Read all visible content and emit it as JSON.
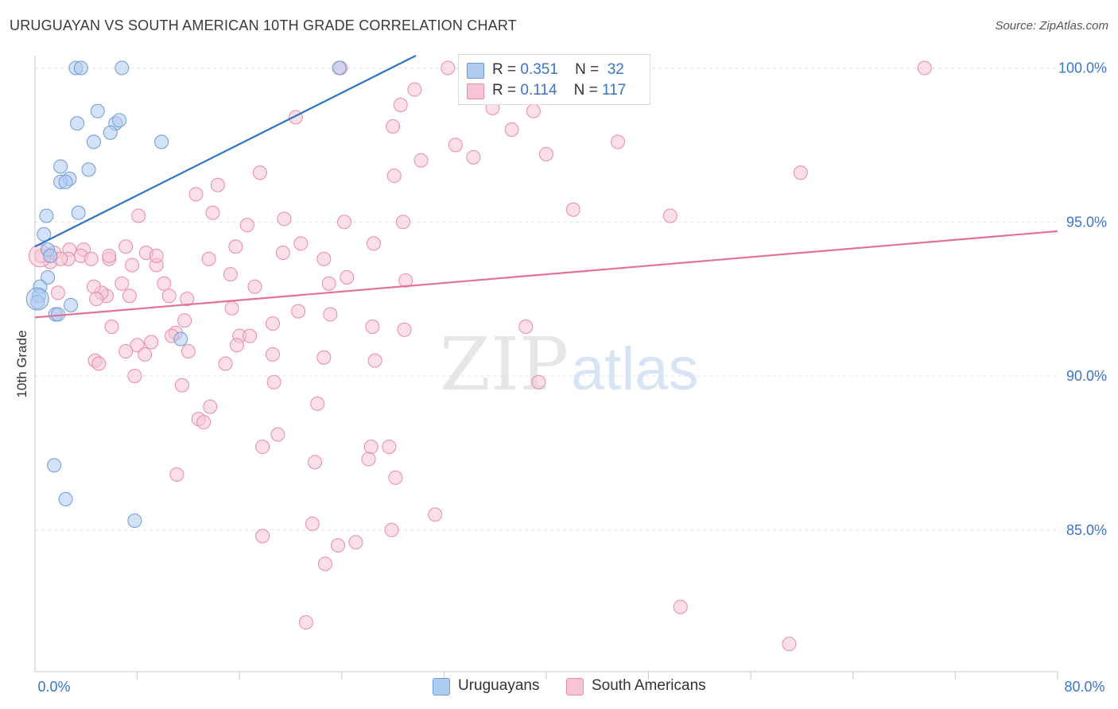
{
  "title": "URUGUAYAN VS SOUTH AMERICAN 10TH GRADE CORRELATION CHART",
  "source": "Source: ZipAtlas.com",
  "watermark": {
    "zip": "ZIP",
    "atlas": "atlas"
  },
  "legend": {
    "r_label": "R =",
    "n_label": "N =",
    "rows": [
      {
        "r": "0.351",
        "n": "32",
        "color": "#aecbf0",
        "border": "#6d9bd6"
      },
      {
        "r": "0.114",
        "n": "117",
        "color": "#f7c4d4",
        "border": "#e98aab"
      }
    ]
  },
  "bottom_legend": [
    {
      "label": "Uruguayans",
      "color": "#aecbf0",
      "border": "#6d9bd6"
    },
    {
      "label": "South Americans",
      "color": "#f7c4d4",
      "border": "#e98aab"
    }
  ],
  "chart_data": {
    "type": "scatter",
    "title": "URUGUAYAN VS SOUTH AMERICAN 10TH GRADE CORRELATION CHART",
    "xlabel": "",
    "ylabel": "10th Grade",
    "xlim": [
      0,
      80
    ],
    "ylim": [
      80.4,
      100.4
    ],
    "x_tick_labels": [
      "0.0%",
      "80.0%"
    ],
    "y_ticks": [
      85,
      90,
      95,
      100
    ],
    "y_tick_labels": [
      "85.0%",
      "90.0%",
      "95.0%",
      "100.0%"
    ],
    "grid": true,
    "legend_position": "top-center",
    "series": [
      {
        "name": "Uruguayans",
        "color": "#aecbf0",
        "stroke": "#6d9bd6",
        "trend": {
          "x": [
            0,
            29.8
          ],
          "y": [
            94.2,
            100.4
          ],
          "color": "#2f72c9"
        },
        "points": [
          [
            3.2,
            100
          ],
          [
            3.6,
            100
          ],
          [
            6.8,
            100
          ],
          [
            23.8,
            100
          ],
          [
            4.9,
            98.6
          ],
          [
            3.3,
            98.2
          ],
          [
            6.3,
            98.2
          ],
          [
            6.6,
            98.3
          ],
          [
            5.9,
            97.9
          ],
          [
            4.6,
            97.6
          ],
          [
            9.9,
            97.6
          ],
          [
            2.0,
            96.8
          ],
          [
            4.2,
            96.7
          ],
          [
            2.7,
            96.4
          ],
          [
            2.0,
            96.3
          ],
          [
            2.4,
            96.3
          ],
          [
            3.4,
            95.3
          ],
          [
            0.9,
            95.2
          ],
          [
            0.7,
            94.6
          ],
          [
            1.0,
            94.1
          ],
          [
            1.2,
            93.9
          ],
          [
            1.0,
            93.2
          ],
          [
            0.4,
            92.9
          ],
          [
            0.3,
            92.6
          ],
          [
            0.2,
            92.4
          ],
          [
            2.8,
            92.3
          ],
          [
            1.6,
            92.0
          ],
          [
            1.8,
            92.0
          ],
          [
            11.4,
            91.2
          ],
          [
            1.5,
            87.1
          ],
          [
            2.4,
            86.0
          ],
          [
            7.8,
            85.3
          ]
        ]
      },
      {
        "name": "South Americans",
        "color": "#f7c4d4",
        "stroke": "#e98aab",
        "trend": {
          "x": [
            0,
            80
          ],
          "y": [
            91.9,
            94.7
          ],
          "color": "#e2729a"
        },
        "points": [
          [
            23.9,
            100
          ],
          [
            32.3,
            100
          ],
          [
            69.6,
            100
          ],
          [
            34.6,
            99.7
          ],
          [
            29.7,
            99.3
          ],
          [
            35.8,
            98.7
          ],
          [
            28.6,
            98.8
          ],
          [
            39.0,
            98.6
          ],
          [
            20.4,
            98.4
          ],
          [
            28.0,
            98.1
          ],
          [
            37.3,
            98.0
          ],
          [
            32.9,
            97.5
          ],
          [
            45.6,
            97.6
          ],
          [
            34.3,
            97.1
          ],
          [
            30.2,
            97.0
          ],
          [
            40.0,
            97.2
          ],
          [
            28.1,
            96.5
          ],
          [
            59.9,
            96.6
          ],
          [
            17.6,
            96.6
          ],
          [
            14.3,
            96.2
          ],
          [
            12.6,
            95.9
          ],
          [
            42.1,
            95.4
          ],
          [
            49.7,
            95.2
          ],
          [
            13.9,
            95.3
          ],
          [
            8.1,
            95.2
          ],
          [
            19.5,
            95.1
          ],
          [
            16.6,
            94.9
          ],
          [
            24.2,
            95.0
          ],
          [
            28.8,
            95.0
          ],
          [
            26.5,
            94.3
          ],
          [
            20.8,
            94.3
          ],
          [
            15.7,
            94.2
          ],
          [
            19.4,
            94.0
          ],
          [
            8.7,
            94.0
          ],
          [
            7.1,
            94.2
          ],
          [
            7.6,
            93.6
          ],
          [
            9.5,
            93.6
          ],
          [
            9.5,
            93.9
          ],
          [
            3.8,
            94.1
          ],
          [
            2.7,
            94.1
          ],
          [
            3.6,
            93.9
          ],
          [
            5.8,
            93.8
          ],
          [
            4.4,
            93.8
          ],
          [
            5.8,
            93.9
          ],
          [
            2.6,
            93.8
          ],
          [
            1.2,
            93.7
          ],
          [
            0.5,
            93.9
          ],
          [
            1.5,
            94.0
          ],
          [
            2.0,
            93.8
          ],
          [
            22.6,
            93.8
          ],
          [
            13.6,
            93.8
          ],
          [
            15.3,
            93.3
          ],
          [
            24.4,
            93.2
          ],
          [
            10.1,
            93.0
          ],
          [
            23.0,
            93.0
          ],
          [
            17.2,
            92.9
          ],
          [
            29.0,
            93.1
          ],
          [
            6.8,
            93.0
          ],
          [
            7.4,
            92.6
          ],
          [
            5.6,
            92.6
          ],
          [
            5.2,
            92.7
          ],
          [
            1.8,
            92.7
          ],
          [
            4.6,
            92.9
          ],
          [
            4.8,
            92.5
          ],
          [
            10.5,
            92.6
          ],
          [
            11.9,
            92.5
          ],
          [
            15.4,
            92.2
          ],
          [
            20.6,
            92.1
          ],
          [
            23.1,
            92.0
          ],
          [
            11.7,
            91.8
          ],
          [
            18.6,
            91.7
          ],
          [
            26.4,
            91.6
          ],
          [
            38.4,
            91.6
          ],
          [
            28.9,
            91.5
          ],
          [
            6.0,
            91.6
          ],
          [
            11.0,
            91.4
          ],
          [
            10.7,
            91.3
          ],
          [
            9.1,
            91.1
          ],
          [
            16.0,
            91.3
          ],
          [
            16.8,
            91.3
          ],
          [
            15.8,
            91.0
          ],
          [
            8.0,
            91.0
          ],
          [
            7.1,
            90.8
          ],
          [
            12.0,
            90.8
          ],
          [
            8.6,
            90.7
          ],
          [
            18.6,
            90.7
          ],
          [
            22.6,
            90.6
          ],
          [
            26.6,
            90.5
          ],
          [
            14.9,
            90.4
          ],
          [
            4.7,
            90.5
          ],
          [
            5.0,
            90.4
          ],
          [
            7.8,
            90.0
          ],
          [
            39.4,
            89.8
          ],
          [
            18.7,
            89.8
          ],
          [
            11.5,
            89.7
          ],
          [
            13.7,
            89.0
          ],
          [
            22.1,
            89.1
          ],
          [
            12.8,
            88.6
          ],
          [
            13.2,
            88.5
          ],
          [
            19.0,
            88.1
          ],
          [
            17.8,
            87.7
          ],
          [
            26.3,
            87.7
          ],
          [
            27.7,
            87.7
          ],
          [
            26.1,
            87.3
          ],
          [
            21.9,
            87.2
          ],
          [
            11.1,
            86.8
          ],
          [
            28.2,
            86.7
          ],
          [
            31.3,
            85.5
          ],
          [
            21.7,
            85.2
          ],
          [
            27.9,
            85.0
          ],
          [
            17.8,
            84.8
          ],
          [
            25.1,
            84.6
          ],
          [
            23.7,
            84.5
          ],
          [
            22.7,
            83.9
          ],
          [
            50.5,
            82.5
          ],
          [
            21.2,
            82.0
          ],
          [
            59.0,
            81.3
          ]
        ]
      }
    ]
  }
}
